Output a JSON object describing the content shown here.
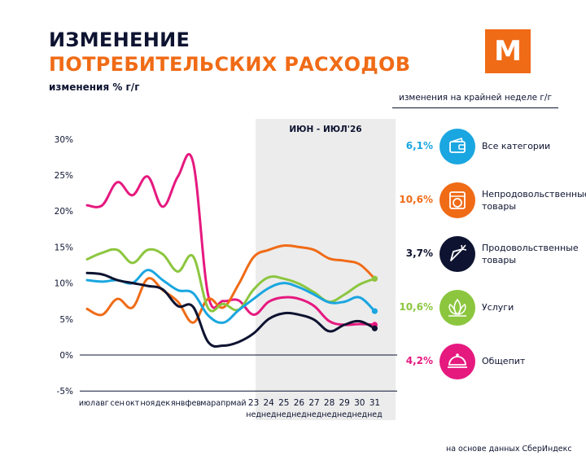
{
  "header": {
    "title_line1": "ИЗМЕНЕНИЕ",
    "title_line2": "ПОТРЕБИТЕЛЬСКИХ РАСХОДОВ",
    "subtitle": "изменения % г/г",
    "logo_letter": "М"
  },
  "legend": {
    "header": "изменения на крайней неделе г/г",
    "items": [
      {
        "value": "6,1%",
        "label": "Все категории",
        "color": "#1aa6e0",
        "icon": "wallet-icon"
      },
      {
        "value": "10,6%",
        "label": "Непродовольственные товары",
        "color": "#f06b16",
        "icon": "washing-machine-icon"
      },
      {
        "value": "3,7%",
        "label": "Продовольственные товары",
        "color": "#0d1330",
        "icon": "carrot-icon"
      },
      {
        "value": "10,6%",
        "label": "Услуги",
        "color": "#8cc63f",
        "icon": "lotus-icon"
      },
      {
        "value": "4,2%",
        "label": "Общепит",
        "color": "#e6197f",
        "icon": "cloche-icon"
      }
    ]
  },
  "footer": "на основе данных СберИндекс",
  "chart_data": {
    "type": "line",
    "title": "ИЗМЕНЕНИЕ ПОТРЕБИТЕЛЬСКИХ РАСХОДОВ",
    "ylabel": "изменения % г/г",
    "yticks": [
      "30%",
      "25%",
      "20%",
      "15%",
      "10%",
      "5%",
      "0%",
      "-5%"
    ],
    "ylim": [
      -5,
      30
    ],
    "shaded_region_label": "ИЮН - ИЮЛ'26",
    "x": [
      {
        "top": "июл",
        "bottom": ""
      },
      {
        "top": "авг",
        "bottom": ""
      },
      {
        "top": "сен",
        "bottom": ""
      },
      {
        "top": "окт",
        "bottom": ""
      },
      {
        "top": "ноя",
        "bottom": ""
      },
      {
        "top": "дек",
        "bottom": ""
      },
      {
        "top": "янв",
        "bottom": ""
      },
      {
        "top": "фев",
        "bottom": ""
      },
      {
        "top": "мар",
        "bottom": ""
      },
      {
        "top": "апр",
        "bottom": ""
      },
      {
        "top": "май",
        "bottom": ""
      },
      {
        "top": "23",
        "bottom": "нед"
      },
      {
        "top": "24",
        "bottom": "нед"
      },
      {
        "top": "25",
        "bottom": "нед"
      },
      {
        "top": "26",
        "bottom": "нед"
      },
      {
        "top": "27",
        "bottom": "нед"
      },
      {
        "top": "28",
        "bottom": "нед"
      },
      {
        "top": "29",
        "bottom": "нед"
      },
      {
        "top": "30",
        "bottom": "нед"
      },
      {
        "top": "31",
        "bottom": "нед"
      }
    ],
    "series": [
      {
        "name": "Общепит",
        "color": "#e6197f",
        "values": [
          20.8,
          20.8,
          24.0,
          22.2,
          24.8,
          20.6,
          24.8,
          26.8,
          8.3,
          7.5,
          7.6,
          5.6,
          7.4,
          8.0,
          7.8,
          6.8,
          4.7,
          4.2,
          4.3,
          4.2
        ]
      },
      {
        "name": "Непродовольственные товары",
        "color": "#f06b16",
        "values": [
          6.4,
          5.6,
          7.8,
          6.6,
          10.6,
          9.0,
          7.4,
          4.5,
          7.8,
          6.6,
          9.8,
          13.6,
          14.6,
          15.2,
          15.0,
          14.6,
          13.4,
          13.1,
          12.6,
          10.6
        ]
      },
      {
        "name": "Услуги",
        "color": "#8cc63f",
        "values": [
          13.3,
          14.2,
          14.6,
          12.8,
          14.6,
          14.0,
          11.6,
          13.7,
          6.5,
          7.1,
          6.3,
          9.1,
          10.8,
          10.6,
          9.9,
          8.7,
          7.4,
          8.4,
          9.8,
          10.6
        ]
      },
      {
        "name": "Все категории",
        "color": "#1aa6e0",
        "values": [
          10.4,
          10.2,
          10.4,
          10.0,
          11.8,
          10.4,
          9.0,
          8.6,
          5.5,
          4.5,
          6.2,
          7.8,
          9.3,
          10.0,
          9.4,
          8.4,
          7.3,
          7.4,
          8.0,
          6.1
        ]
      },
      {
        "name": "Продовольственные товары",
        "color": "#0d1330",
        "values": [
          11.4,
          11.2,
          10.4,
          10.0,
          9.6,
          9.1,
          6.8,
          6.7,
          1.8,
          1.3,
          1.8,
          3.0,
          5.0,
          5.8,
          5.6,
          4.9,
          3.3,
          4.2,
          4.7,
          3.7
        ]
      }
    ]
  }
}
